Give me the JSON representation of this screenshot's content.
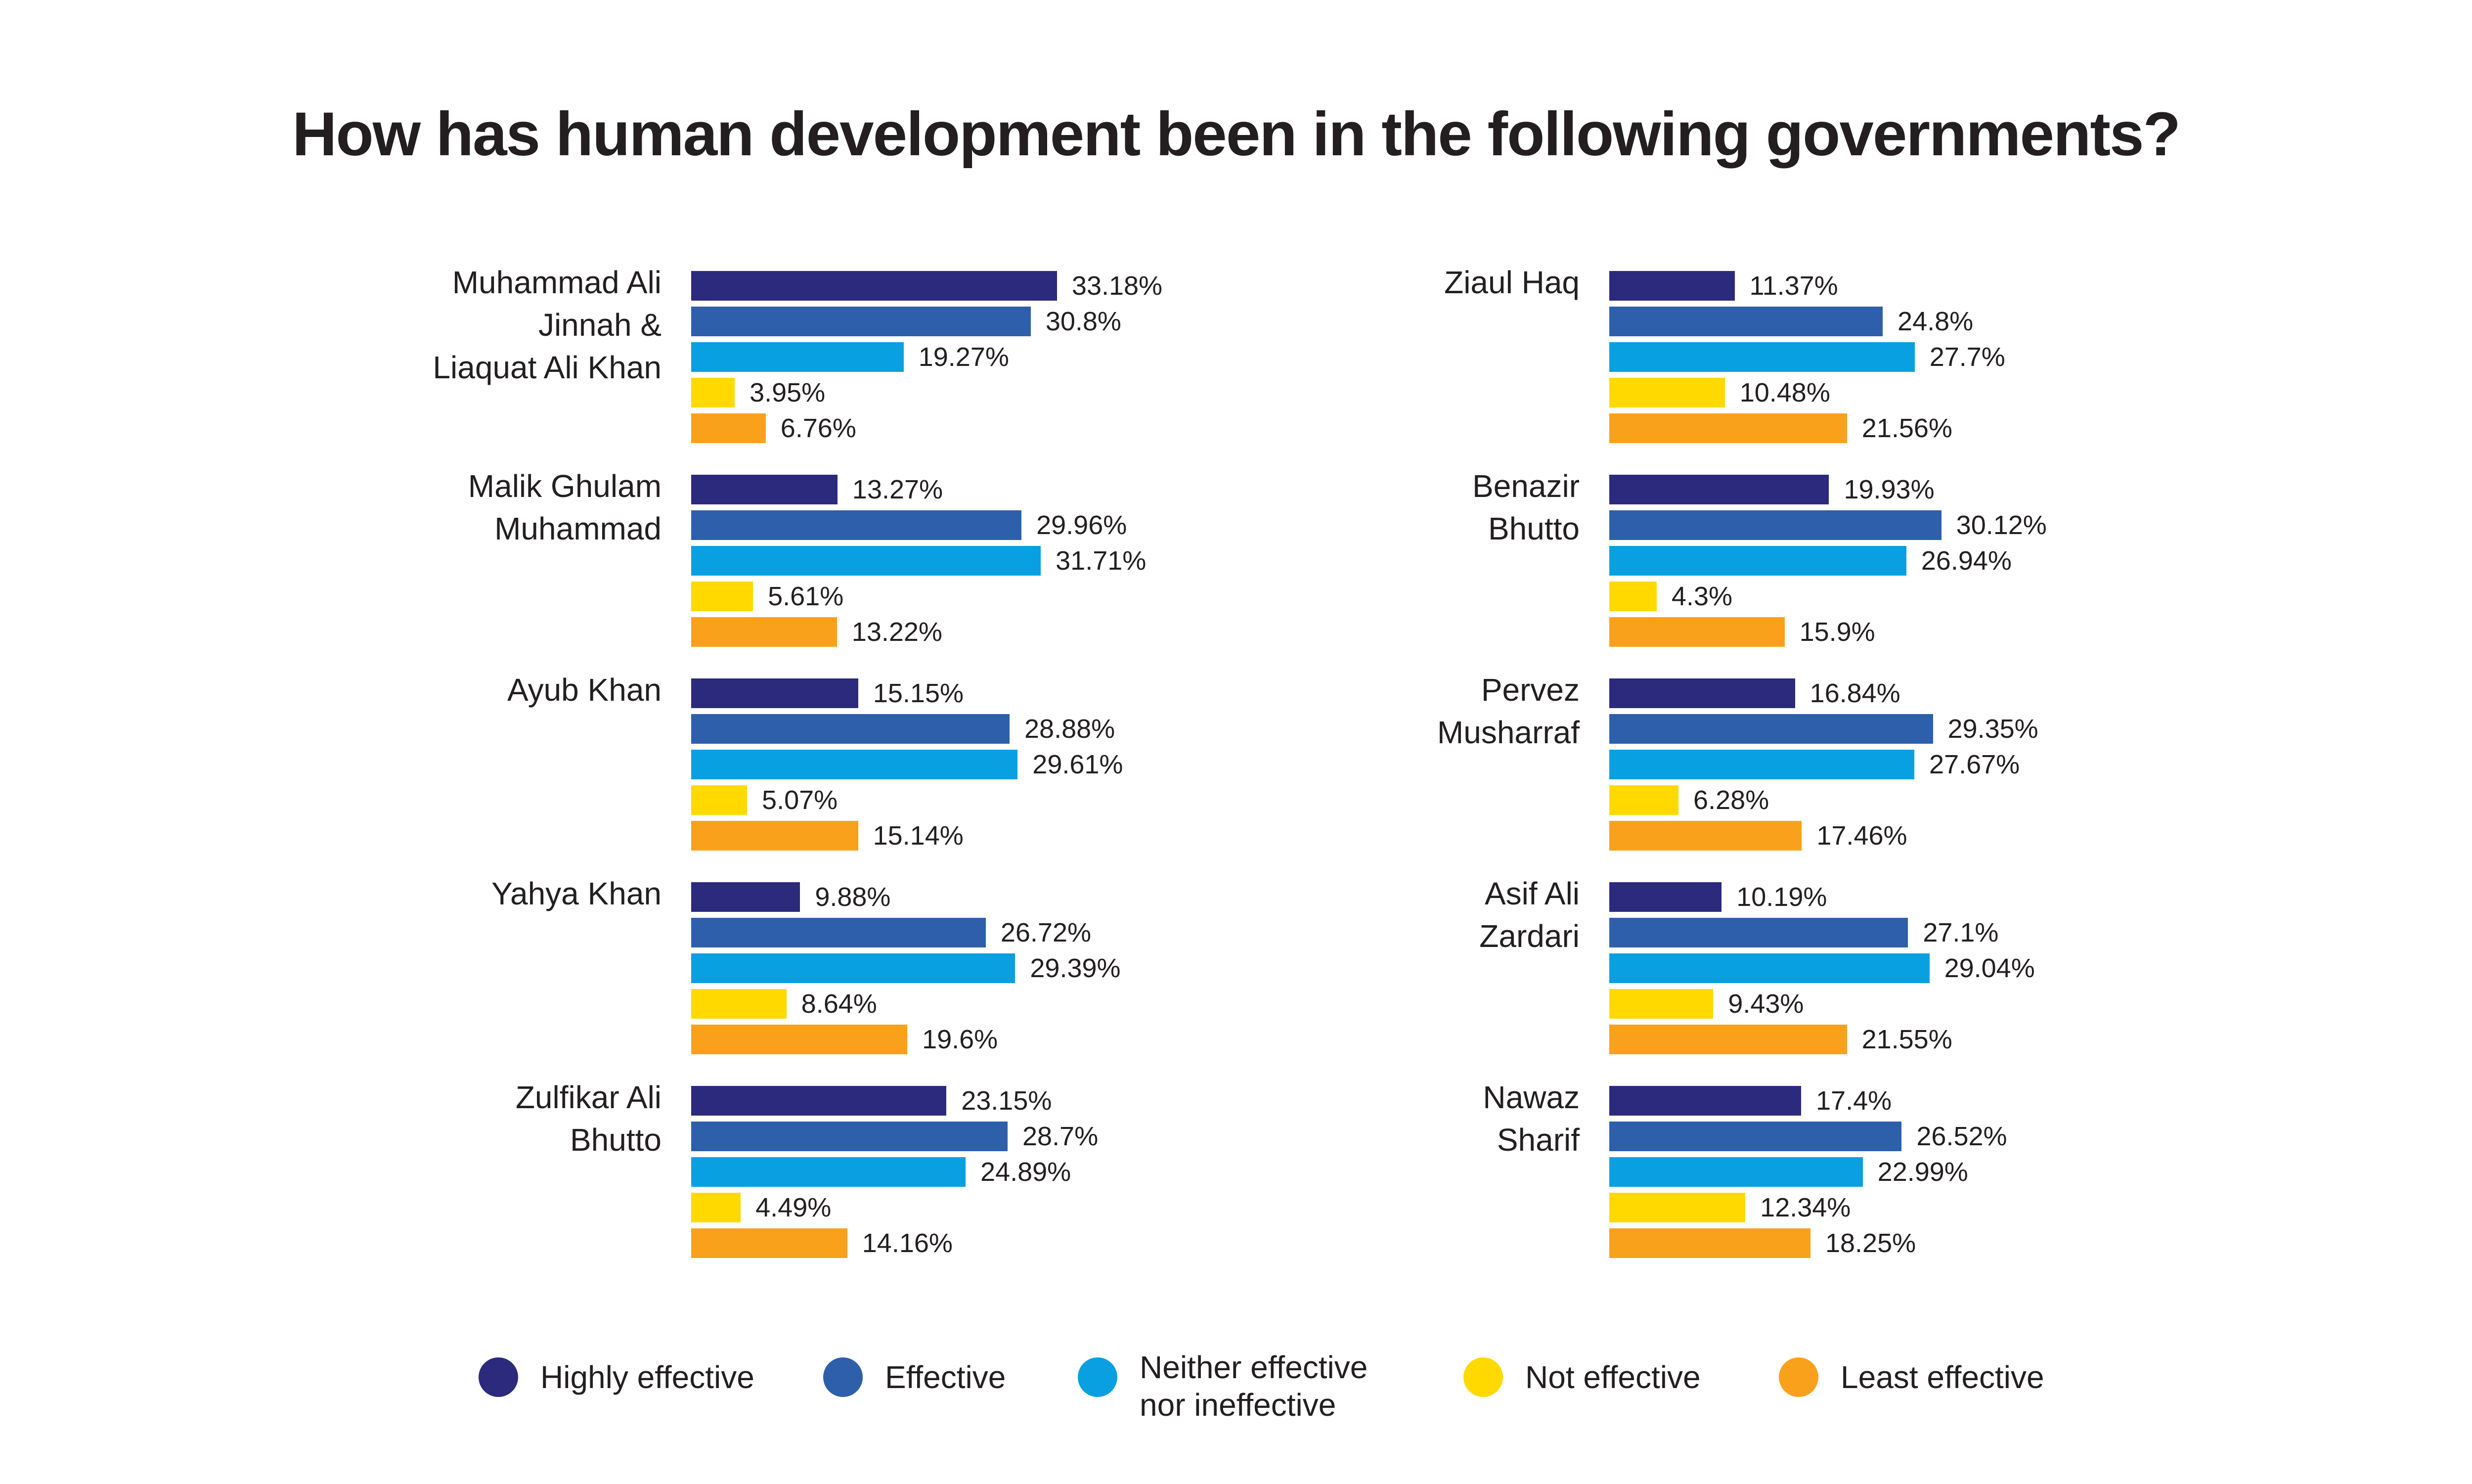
{
  "chart_data": {
    "type": "bar",
    "orientation": "horizontal",
    "title": "How has human development been in the following governments?",
    "series": [
      {
        "name": "Highly effective",
        "color": "#2b2a7c"
      },
      {
        "name": "Effective",
        "color": "#2d5fab"
      },
      {
        "name": "Neither effective nor ineffective",
        "color": "#08a0e0"
      },
      {
        "name": "Not effective",
        "color": "#ffd900"
      },
      {
        "name": "Least effective",
        "color": "#f9a11b"
      }
    ],
    "legend": {
      "position": "bottom",
      "items": [
        {
          "lines": [
            "Highly effective"
          ],
          "color": "#2b2a7c"
        },
        {
          "lines": [
            "Effective"
          ],
          "color": "#2d5fab"
        },
        {
          "lines": [
            "Neither effective",
            "nor ineffective"
          ],
          "color": "#08a0e0"
        },
        {
          "lines": [
            "Not effective"
          ],
          "color": "#ffd900"
        },
        {
          "lines": [
            "Least effective"
          ],
          "color": "#f9a11b"
        }
      ]
    },
    "groups": [
      {
        "label_lines": [
          "Muhammad Ali",
          "Jinnah &",
          "Liaquat Ali Khan"
        ],
        "values": [
          33.18,
          30.8,
          19.27,
          3.95,
          6.76
        ],
        "labels": [
          "33.18%",
          "30.8%",
          "19.27%",
          "3.95%",
          "6.76%"
        ]
      },
      {
        "label_lines": [
          "Malik Ghulam",
          "Muhammad"
        ],
        "values": [
          13.27,
          29.96,
          31.71,
          5.61,
          13.22
        ],
        "labels": [
          "13.27%",
          "29.96%",
          "31.71%",
          "5.61%",
          "13.22%"
        ]
      },
      {
        "label_lines": [
          "Ayub Khan"
        ],
        "values": [
          15.15,
          28.88,
          29.61,
          5.07,
          15.14
        ],
        "labels": [
          "15.15%",
          "28.88%",
          "29.61%",
          "5.07%",
          "15.14%"
        ]
      },
      {
        "label_lines": [
          "Yahya Khan"
        ],
        "values": [
          9.88,
          26.72,
          29.39,
          8.64,
          19.6
        ],
        "labels": [
          "9.88%",
          "26.72%",
          "29.39%",
          "8.64%",
          "19.6%"
        ]
      },
      {
        "label_lines": [
          "Zulfikar Ali",
          "Bhutto"
        ],
        "values": [
          23.15,
          28.7,
          24.89,
          4.49,
          14.16
        ],
        "labels": [
          "23.15%",
          "28.7%",
          "24.89%",
          "4.49%",
          "14.16%"
        ]
      },
      {
        "label_lines": [
          "Ziaul Haq"
        ],
        "values": [
          11.37,
          24.8,
          27.7,
          10.48,
          21.56
        ],
        "labels": [
          "11.37%",
          "24.8%",
          "27.7%",
          "10.48%",
          "21.56%"
        ]
      },
      {
        "label_lines": [
          "Benazir",
          "Bhutto"
        ],
        "values": [
          19.93,
          30.12,
          26.94,
          4.3,
          15.9
        ],
        "labels": [
          "19.93%",
          "30.12%",
          "26.94%",
          "4.3%",
          "15.9%"
        ]
      },
      {
        "label_lines": [
          "Pervez",
          "Musharraf"
        ],
        "values": [
          16.84,
          29.35,
          27.67,
          6.28,
          17.46
        ],
        "labels": [
          "16.84%",
          "29.35%",
          "27.67%",
          "6.28%",
          "17.46%"
        ]
      },
      {
        "label_lines": [
          "Asif Ali",
          "Zardari"
        ],
        "values": [
          10.19,
          27.1,
          29.04,
          9.43,
          21.55
        ],
        "labels": [
          "10.19%",
          "27.1%",
          "29.04%",
          "9.43%",
          "21.55%"
        ]
      },
      {
        "label_lines": [
          "Nawaz",
          "Sharif"
        ],
        "values": [
          17.4,
          26.52,
          22.99,
          12.34,
          18.25
        ],
        "labels": [
          "17.4%",
          "26.52%",
          "22.99%",
          "12.34%",
          "18.25%"
        ]
      }
    ]
  }
}
